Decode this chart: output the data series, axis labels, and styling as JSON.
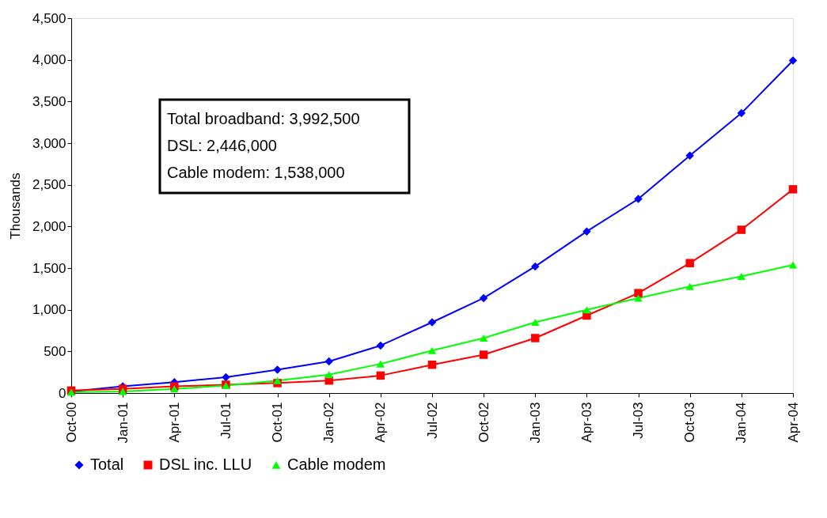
{
  "chart_data": {
    "type": "line",
    "ylabel": "Thousands",
    "categories": [
      "Oct-00",
      "Jan-01",
      "Apr-01",
      "Jul-01",
      "Oct-01",
      "Jan-02",
      "Apr-02",
      "Jul-02",
      "Oct-02",
      "Jan-03",
      "Apr-03",
      "Jul-03",
      "Oct-03",
      "Jan-04",
      "Apr-04"
    ],
    "series": [
      {
        "name": "Total",
        "color": "#0000ff",
        "marker": "diamond",
        "values": [
          20,
          80,
          130,
          190,
          280,
          380,
          570,
          850,
          1140,
          1520,
          1940,
          2330,
          2850,
          3360,
          3992.5
        ]
      },
      {
        "name": "DSL inc. LLU",
        "color": "#ff0000",
        "marker": "square",
        "values": [
          30,
          50,
          80,
          100,
          120,
          150,
          210,
          340,
          460,
          660,
          930,
          1200,
          1560,
          1960,
          2446
        ]
      },
      {
        "name": "Cable modem",
        "color": "#00ff00",
        "marker": "triangle",
        "values": [
          10,
          20,
          50,
          90,
          150,
          220,
          350,
          510,
          660,
          850,
          1000,
          1140,
          1280,
          1400,
          1538
        ]
      }
    ],
    "ylim": [
      0,
      4500
    ],
    "yticks": [
      {
        "value": 0,
        "label": "0"
      },
      {
        "value": 500,
        "label": "500"
      },
      {
        "value": 1000,
        "label": "1,000"
      },
      {
        "value": 1500,
        "label": "1,500"
      },
      {
        "value": 2000,
        "label": "2,000"
      },
      {
        "value": 2500,
        "label": "2,500"
      },
      {
        "value": 3000,
        "label": "3,000"
      },
      {
        "value": 3500,
        "label": "3,500"
      },
      {
        "value": 4000,
        "label": "4,000"
      },
      {
        "value": 4500,
        "label": "4,500"
      }
    ],
    "grid": false,
    "legend": "bottom",
    "line_style": "solid",
    "annotations": [
      "Total broadband: 3,992,500",
      "DSL: 2,446,000",
      "Cable modem: 1,538,000"
    ]
  }
}
